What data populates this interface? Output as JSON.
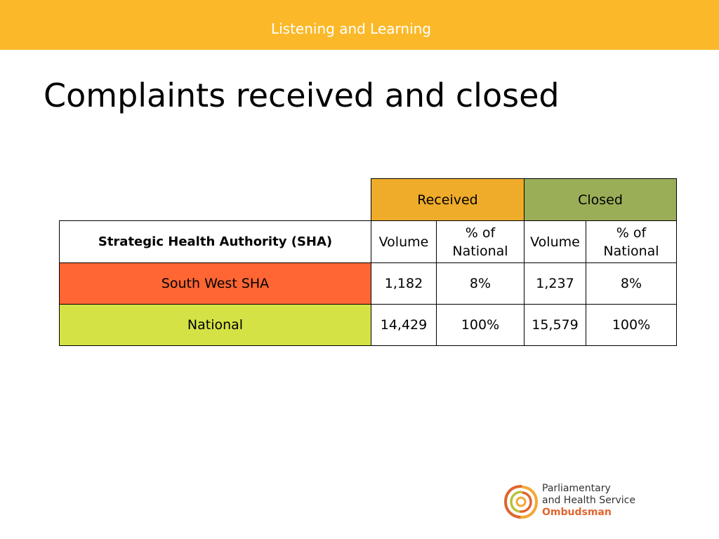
{
  "header": {
    "title": "Listening and Learning",
    "bar_color": "#fbb92a"
  },
  "slide": {
    "title": "Complaints received and closed"
  },
  "table": {
    "groups": [
      {
        "label": "Received",
        "color": "#efac2a"
      },
      {
        "label": "Closed",
        "color": "#9aae58"
      }
    ],
    "columns": [
      "Strategic Health Authority (SHA)",
      "Volume",
      "% of National",
      "Volume",
      "% of National"
    ],
    "rows": [
      {
        "label": "South West SHA",
        "color": "#ff6633",
        "cells": [
          "1,182",
          "8%",
          "1,237",
          "8%"
        ]
      },
      {
        "label": "National",
        "color": "#d4e245",
        "cells": [
          "14,429",
          "100%",
          "15,579",
          "100%"
        ]
      }
    ]
  },
  "logo": {
    "icon": "ombudsman-swirl-logo",
    "line1": "Parliamentary",
    "line2": "and Health Service",
    "line3": "Ombudsman"
  }
}
